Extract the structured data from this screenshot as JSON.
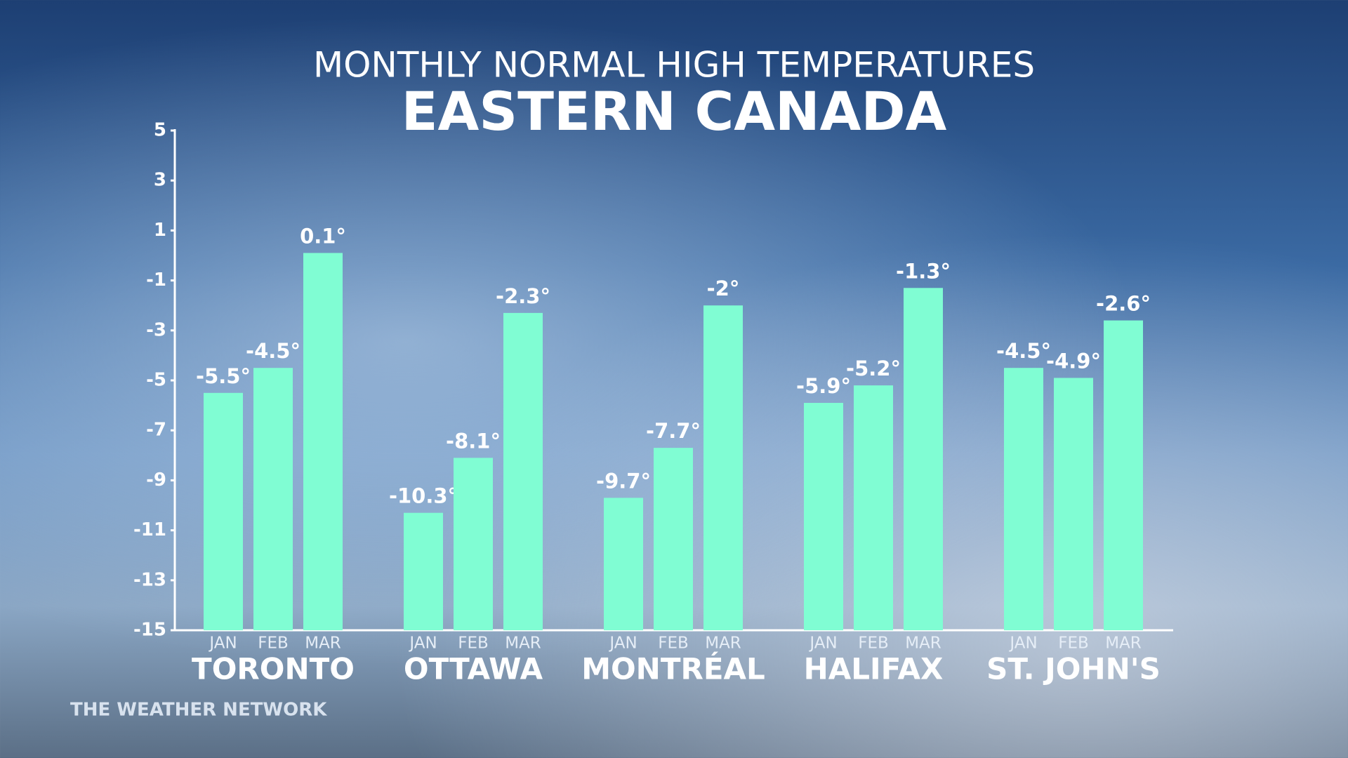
{
  "chart_data": {
    "type": "bar",
    "title": "MONTHLY NORMAL HIGH TEMPERATURES",
    "subtitle": "EASTERN CANADA",
    "source": "THE WEATHER NETWORK",
    "categories": [
      "TORONTO",
      "OTTAWA",
      "MONTRÉAL",
      "HALIFAX",
      "ST. JOHN'S"
    ],
    "series": [
      {
        "name": "JAN",
        "color": "#80fdd3",
        "values": [
          -5.5,
          -10.3,
          -9.7,
          -5.9,
          -4.5
        ],
        "value_labels": [
          "-5.5°",
          "-10.3°",
          "-9.7°",
          "-5.9°",
          "-4.5°"
        ]
      },
      {
        "name": "FEB",
        "color": "#80fdd3",
        "values": [
          -4.5,
          -8.1,
          -7.7,
          -5.2,
          -4.9
        ],
        "value_labels": [
          "-4.5°",
          "-8.1°",
          "-7.7°",
          "-5.2°",
          "-4.9°"
        ]
      },
      {
        "name": "MAR",
        "color": "#80fdd3",
        "values": [
          0.1,
          -2.3,
          -2,
          -1.3,
          -2.6
        ],
        "value_labels": [
          "0.1°",
          "-2.3°",
          "-2°",
          "-1.3°",
          "-2.6°"
        ]
      }
    ],
    "ylim": [
      -15,
      5
    ],
    "yticks": [
      -15,
      -13,
      -11,
      -9,
      -7,
      -5,
      -3,
      -1,
      1,
      3,
      5
    ],
    "grid": false
  }
}
